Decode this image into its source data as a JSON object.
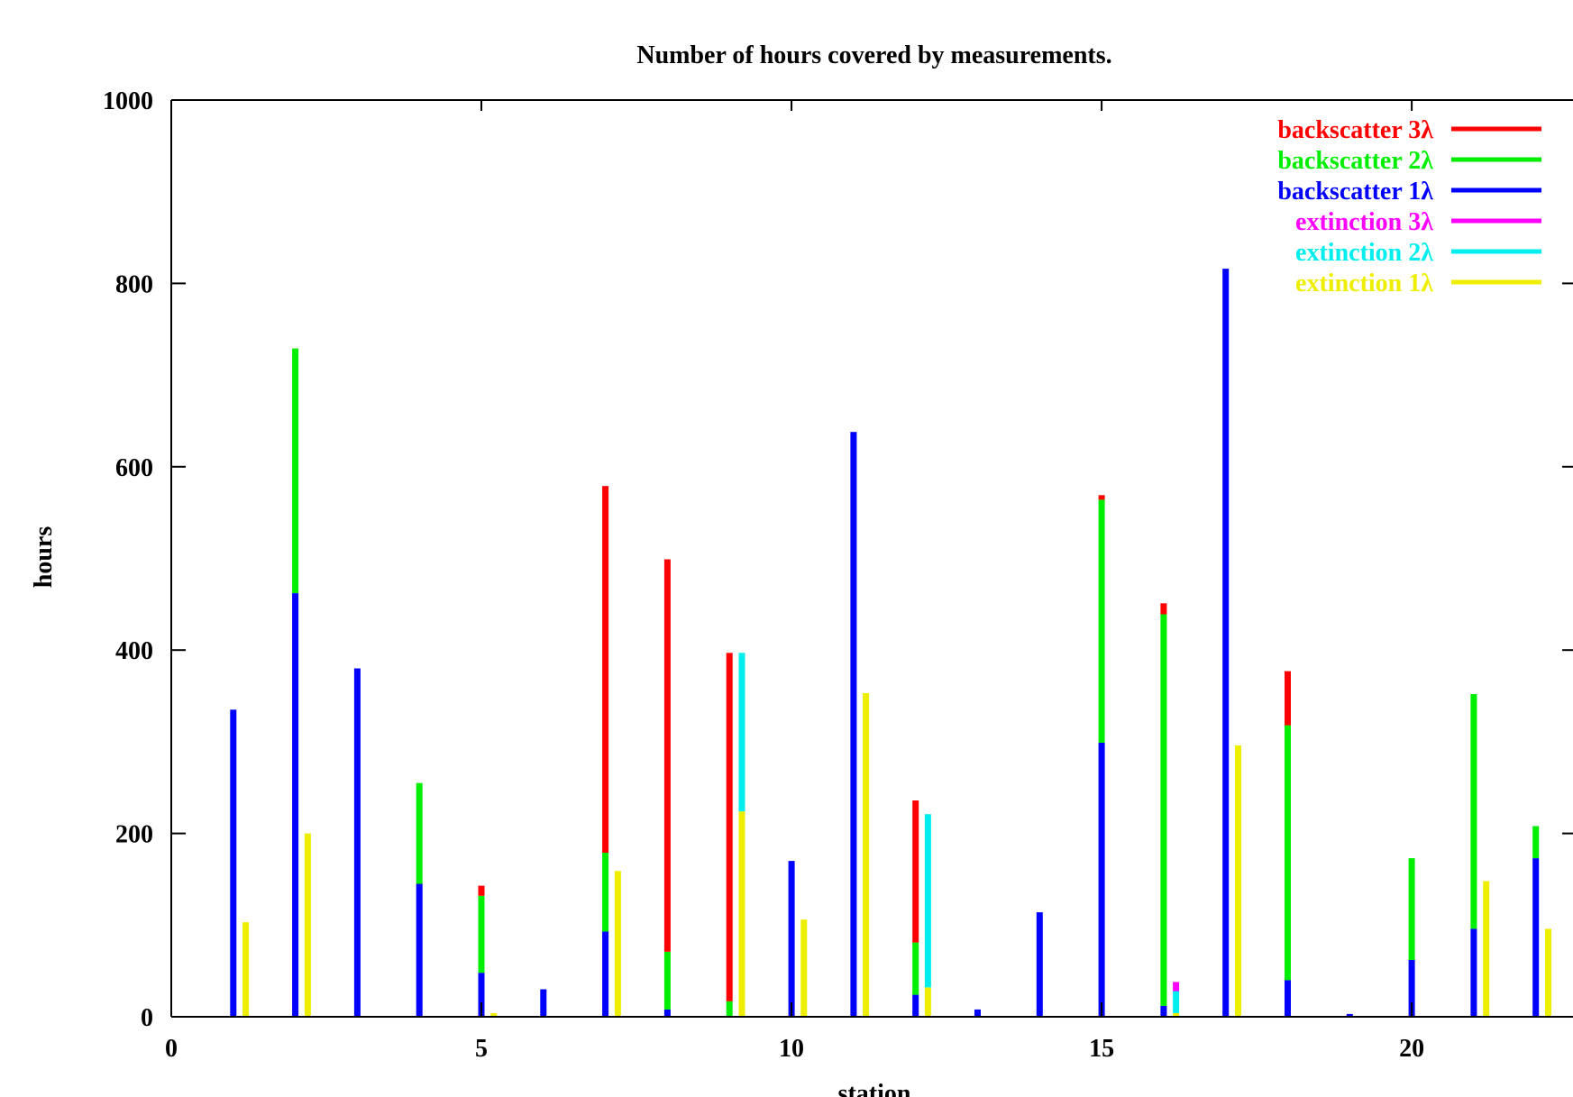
{
  "chart_data": {
    "type": "bar",
    "title": "Number of hours covered by measurements.",
    "xlabel": "station",
    "ylabel": "hours",
    "xlim": [
      0,
      22.6
    ],
    "ylim": [
      0,
      1000
    ],
    "x_ticks": [
      0,
      5,
      10,
      15,
      20
    ],
    "y_ticks": [
      0,
      200,
      400,
      600,
      800,
      1000
    ],
    "grid": false,
    "legend_position": "top-right",
    "colors": {
      "backscatter_3": "#ff0000",
      "backscatter_2": "#00ee00",
      "backscatter_1": "#0000ff",
      "extinction_3": "#ff00ff",
      "extinction_2": "#00eeee",
      "extinction_1": "#eeee00"
    },
    "legend": [
      {
        "label": "backscatter 3λ",
        "key": "backscatter_3"
      },
      {
        "label": "backscatter 2λ",
        "key": "backscatter_2"
      },
      {
        "label": "backscatter 1λ",
        "key": "backscatter_1"
      },
      {
        "label": "extinction 3λ",
        "key": "extinction_3"
      },
      {
        "label": "extinction 2λ",
        "key": "extinction_2"
      },
      {
        "label": "extinction 1λ",
        "key": "extinction_1"
      }
    ],
    "stations": [
      1,
      2,
      3,
      4,
      5,
      6,
      7,
      8,
      9,
      10,
      11,
      12,
      13,
      14,
      15,
      16,
      17,
      18,
      19,
      20,
      21,
      22
    ],
    "series": [
      {
        "key": "backscatter_1",
        "values": [
          335,
          462,
          380,
          145,
          48,
          30,
          93,
          8,
          0,
          170,
          638,
          24,
          8,
          114,
          299,
          12,
          816,
          40,
          3,
          62,
          96,
          173
        ]
      },
      {
        "key": "backscatter_2",
        "values": [
          335,
          729,
          380,
          255,
          132,
          30,
          179,
          71,
          17,
          170,
          638,
          81,
          8,
          114,
          564,
          439,
          816,
          318,
          3,
          173,
          352,
          208
        ]
      },
      {
        "key": "backscatter_3",
        "values": [
          335,
          729,
          380,
          255,
          143,
          30,
          579,
          499,
          397,
          170,
          638,
          236,
          8,
          114,
          569,
          451,
          816,
          377,
          3,
          173,
          352,
          208
        ]
      },
      {
        "key": "extinction_1",
        "values": [
          103,
          200,
          0,
          0,
          4,
          0,
          159,
          0,
          224,
          106,
          353,
          32,
          0,
          0,
          0,
          4,
          296,
          0,
          0,
          0,
          148,
          96
        ]
      },
      {
        "key": "extinction_2",
        "values": [
          103,
          200,
          0,
          0,
          4,
          0,
          159,
          0,
          397,
          106,
          353,
          221,
          0,
          0,
          0,
          28,
          296,
          0,
          0,
          0,
          148,
          96
        ]
      },
      {
        "key": "extinction_3",
        "values": [
          103,
          200,
          0,
          0,
          4,
          0,
          159,
          0,
          397,
          106,
          353,
          221,
          0,
          0,
          0,
          38,
          296,
          0,
          0,
          0,
          148,
          96
        ]
      }
    ]
  }
}
